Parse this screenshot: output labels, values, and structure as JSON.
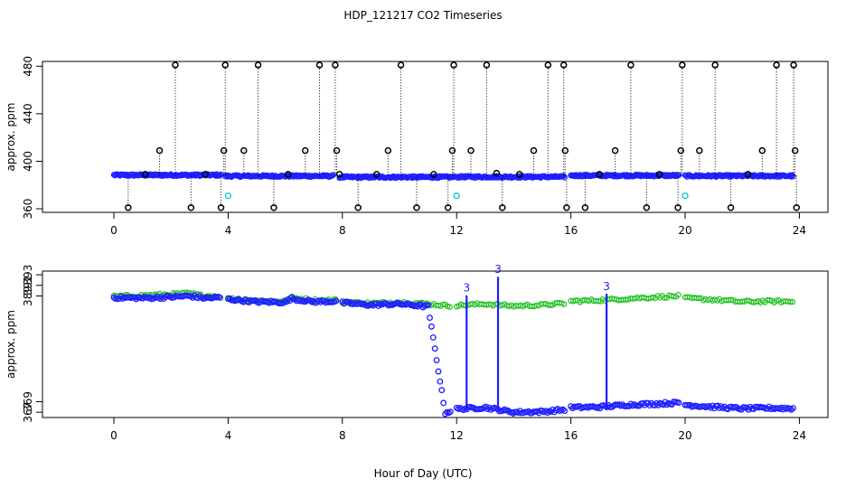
{
  "chart_data": [
    {
      "type": "scatter",
      "title": "HDP_121217  CO2 Timeseries",
      "xlabel": "",
      "ylabel": "approx. ppm",
      "xlim": [
        -2.5,
        25
      ],
      "ylim": [
        357,
        484
      ],
      "x_ticks": [
        0,
        4,
        8,
        12,
        16,
        20,
        24
      ],
      "y_ticks": [
        360,
        400,
        440,
        480
      ],
      "series": [
        {
          "name": "raw flagged (black circles, dotted drops)",
          "color": "#000000",
          "symbol": "circle",
          "x": [
            0.5,
            1.1,
            1.6,
            2.15,
            2.7,
            3.2,
            3.75,
            3.85,
            3.9,
            4.55,
            5.05,
            5.6,
            6.1,
            6.7,
            7.2,
            7.75,
            7.8,
            7.9,
            8.55,
            9.2,
            9.6,
            10.05,
            10.6,
            11.2,
            11.7,
            11.85,
            11.9,
            12.5,
            13.05,
            13.4,
            13.6,
            14.2,
            14.7,
            15.2,
            15.75,
            15.8,
            15.85,
            16.5,
            17.0,
            17.55,
            18.1,
            18.65,
            19.1,
            19.75,
            19.85,
            19.9,
            20.5,
            21.05,
            21.6,
            22.2,
            22.7,
            23.2,
            23.8,
            23.85,
            23.9
          ],
          "y": [
            361,
            389,
            409,
            481,
            361,
            389,
            361,
            409,
            481,
            409,
            481,
            361,
            389,
            409,
            481,
            481,
            409,
            389,
            361,
            389,
            409,
            481,
            361,
            389,
            361,
            409,
            481,
            409,
            481,
            390,
            361,
            389,
            409,
            481,
            481,
            409,
            361,
            361,
            389,
            409,
            481,
            361,
            389,
            361,
            409,
            481,
            409,
            481,
            361,
            389,
            409,
            481,
            481,
            409,
            361
          ]
        },
        {
          "name": "raw baseline (blue)",
          "color": "#1f1fff",
          "symbol": "circle",
          "segments": [
            {
              "start": 0.0,
              "end": 3.75,
              "level": 388.4
            },
            {
              "start": 3.9,
              "end": 7.7,
              "level": 387.6
            },
            {
              "start": 7.9,
              "end": 11.95,
              "level": 386.7
            },
            {
              "start": 12.0,
              "end": 15.8,
              "level": 386.9
            },
            {
              "start": 16.0,
              "end": 19.8,
              "level": 388.0
            },
            {
              "start": 20.0,
              "end": 23.8,
              "level": 387.7
            }
          ]
        },
        {
          "name": "cal (cyan)",
          "color": "#00c8c8",
          "symbol": "circle",
          "x": [
            4.0,
            12.0,
            20.0
          ],
          "y": [
            371,
            371,
            371
          ]
        }
      ]
    },
    {
      "type": "scatter",
      "title": "",
      "xlabel": "Hour of Day (UTC)",
      "ylabel": "approx. ppm",
      "xlim": [
        -2.5,
        25
      ],
      "ylim": [
        366.0,
        393.7
      ],
      "x_ticks": [
        0,
        4,
        8,
        12,
        16,
        20,
        24
      ],
      "y_ticks": [
        367,
        369,
        391,
        393
      ],
      "y_tick_labels_shown": [
        "367",
        "369",
        "389",
        "391",
        "393"
      ],
      "y_tick_values_shown": [
        367,
        369,
        389,
        391,
        393
      ],
      "series": [
        {
          "name": "level 2 (green)",
          "color": "#20c020",
          "symbol": "2",
          "segments": [
            {
              "start": 0.0,
              "end": 3.75,
              "points": [
                [
                  0.0,
                  388.9
                ],
                [
                  1.0,
                  389.1
                ],
                [
                  2.0,
                  389.3
                ],
                [
                  2.6,
                  389.5
                ],
                [
                  3.2,
                  389.0
                ],
                [
                  3.75,
                  389.0
                ]
              ]
            },
            {
              "start": 4.0,
              "end": 7.8,
              "points": [
                [
                  4.0,
                  388.5
                ],
                [
                  5.0,
                  388.1
                ],
                [
                  6.0,
                  388.0
                ],
                [
                  6.2,
                  388.7
                ],
                [
                  7.0,
                  388.2
                ],
                [
                  7.8,
                  388.2
                ]
              ]
            },
            {
              "start": 8.0,
              "end": 11.8,
              "points": [
                [
                  8.0,
                  387.9
                ],
                [
                  9.0,
                  387.6
                ],
                [
                  10.0,
                  387.8
                ],
                [
                  11.0,
                  387.5
                ],
                [
                  11.8,
                  387.1
                ]
              ]
            },
            {
              "start": 12.0,
              "end": 15.8,
              "points": [
                [
                  12.0,
                  387.2
                ],
                [
                  13.0,
                  387.5
                ],
                [
                  14.0,
                  387.1
                ],
                [
                  15.0,
                  387.3
                ],
                [
                  15.8,
                  387.6
                ]
              ]
            },
            {
              "start": 16.0,
              "end": 19.8,
              "points": [
                [
                  16.0,
                  388.0
                ],
                [
                  17.0,
                  388.2
                ],
                [
                  18.0,
                  388.5
                ],
                [
                  19.0,
                  388.8
                ],
                [
                  19.8,
                  389.0
                ]
              ]
            },
            {
              "start": 20.0,
              "end": 23.8,
              "points": [
                [
                  20.0,
                  388.6
                ],
                [
                  21.0,
                  388.3
                ],
                [
                  22.0,
                  387.9
                ],
                [
                  23.0,
                  388.0
                ],
                [
                  23.8,
                  387.9
                ]
              ]
            }
          ]
        },
        {
          "name": "level 3 (blue)",
          "color": "#1f1fff",
          "symbol": "3",
          "segments": [
            {
              "start": 0.0,
              "end": 3.75,
              "points": [
                [
                  0.0,
                  388.7
                ],
                [
                  1.0,
                  388.6
                ],
                [
                  2.0,
                  388.8
                ],
                [
                  2.6,
                  389.0
                ],
                [
                  3.2,
                  388.6
                ],
                [
                  3.75,
                  388.7
                ]
              ]
            },
            {
              "start": 4.0,
              "end": 7.8,
              "points": [
                [
                  4.0,
                  388.4
                ],
                [
                  5.0,
                  387.9
                ],
                [
                  6.0,
                  387.8
                ],
                [
                  6.2,
                  388.5
                ],
                [
                  7.0,
                  387.9
                ],
                [
                  7.8,
                  388.0
                ]
              ]
            },
            {
              "start": 8.0,
              "end": 11.8,
              "points": [
                [
                  8.0,
                  387.7
                ],
                [
                  9.0,
                  387.3
                ],
                [
                  10.0,
                  387.5
                ],
                [
                  11.0,
                  387.0
                ],
                [
                  11.6,
                  366.9
                ],
                [
                  11.8,
                  367.2
                ]
              ]
            },
            {
              "start": 12.0,
              "end": 15.8,
              "points": [
                [
                  12.0,
                  367.6
                ],
                [
                  13.0,
                  367.9
                ],
                [
                  14.0,
                  367.0
                ],
                [
                  15.0,
                  367.1
                ],
                [
                  15.8,
                  367.5
                ]
              ]
            },
            {
              "start": 16.0,
              "end": 19.8,
              "points": [
                [
                  16.0,
                  367.9
                ],
                [
                  17.0,
                  368.0
                ],
                [
                  18.0,
                  368.4
                ],
                [
                  19.0,
                  368.6
                ],
                [
                  19.8,
                  368.8
                ]
              ]
            },
            {
              "start": 20.0,
              "end": 23.8,
              "points": [
                [
                  20.0,
                  368.4
                ],
                [
                  21.0,
                  368.0
                ],
                [
                  22.0,
                  367.7
                ],
                [
                  23.0,
                  367.8
                ],
                [
                  23.8,
                  367.7
                ]
              ]
            }
          ]
        },
        {
          "name": "spikes",
          "color": "#1f1fff",
          "symbol": "3",
          "x": [
            12.35,
            13.45,
            17.25
          ],
          "y": [
            389.5,
            393.0,
            389.8
          ]
        }
      ]
    }
  ]
}
